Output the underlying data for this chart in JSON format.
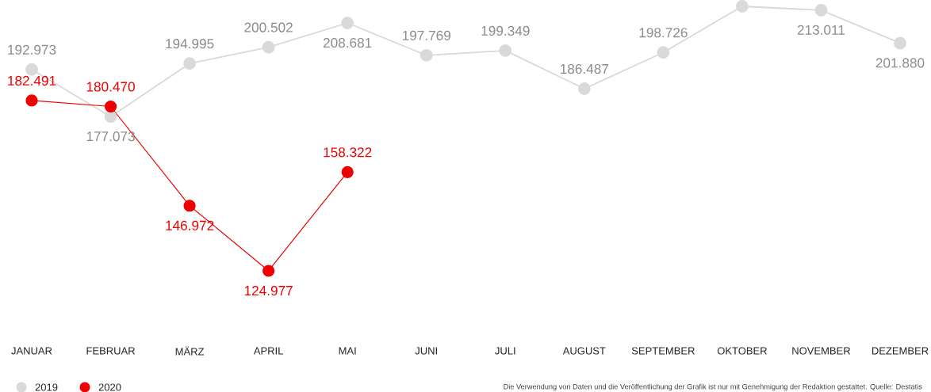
{
  "chart_data": {
    "type": "line",
    "categories": [
      "JANUAR",
      "FEBRUAR",
      "MÄRZ",
      "APRIL",
      "MAI",
      "JUNI",
      "JULI",
      "AUGUST",
      "SEPTEMBER",
      "OKTOBER",
      "NOVEMBER",
      "DEZEMBER"
    ],
    "series": [
      {
        "name": "2019",
        "color": "#d9d9d9",
        "values": [
          192973,
          177073,
          194995,
          200502,
          208681,
          197769,
          199349,
          186487,
          198726,
          214300,
          213011,
          201880
        ],
        "value_labels": [
          "192.973",
          "177.073",
          "194.995",
          "200.502",
          "208.681",
          "197.769",
          "199.349",
          "186.487",
          "198.726",
          null,
          "213.011",
          "201.880"
        ]
      },
      {
        "name": "2020",
        "color": "#ee0000",
        "values": [
          182491,
          180470,
          146972,
          124977,
          158322,
          null,
          null,
          null,
          null,
          null,
          null,
          null
        ],
        "value_labels": [
          "182.491",
          "180.470",
          "146.972",
          "124.977",
          "158.322",
          null,
          null,
          null,
          null,
          null,
          null,
          null
        ]
      }
    ],
    "marker": "circle",
    "line_style": "solid",
    "legend": "bottom left",
    "annotations": [
      "Die Verwendung von Daten und die Veröffentlichung der Grafik ist nur mit Genehmigung der Redaktion gestattet. Quelle: Destatis"
    ]
  }
}
